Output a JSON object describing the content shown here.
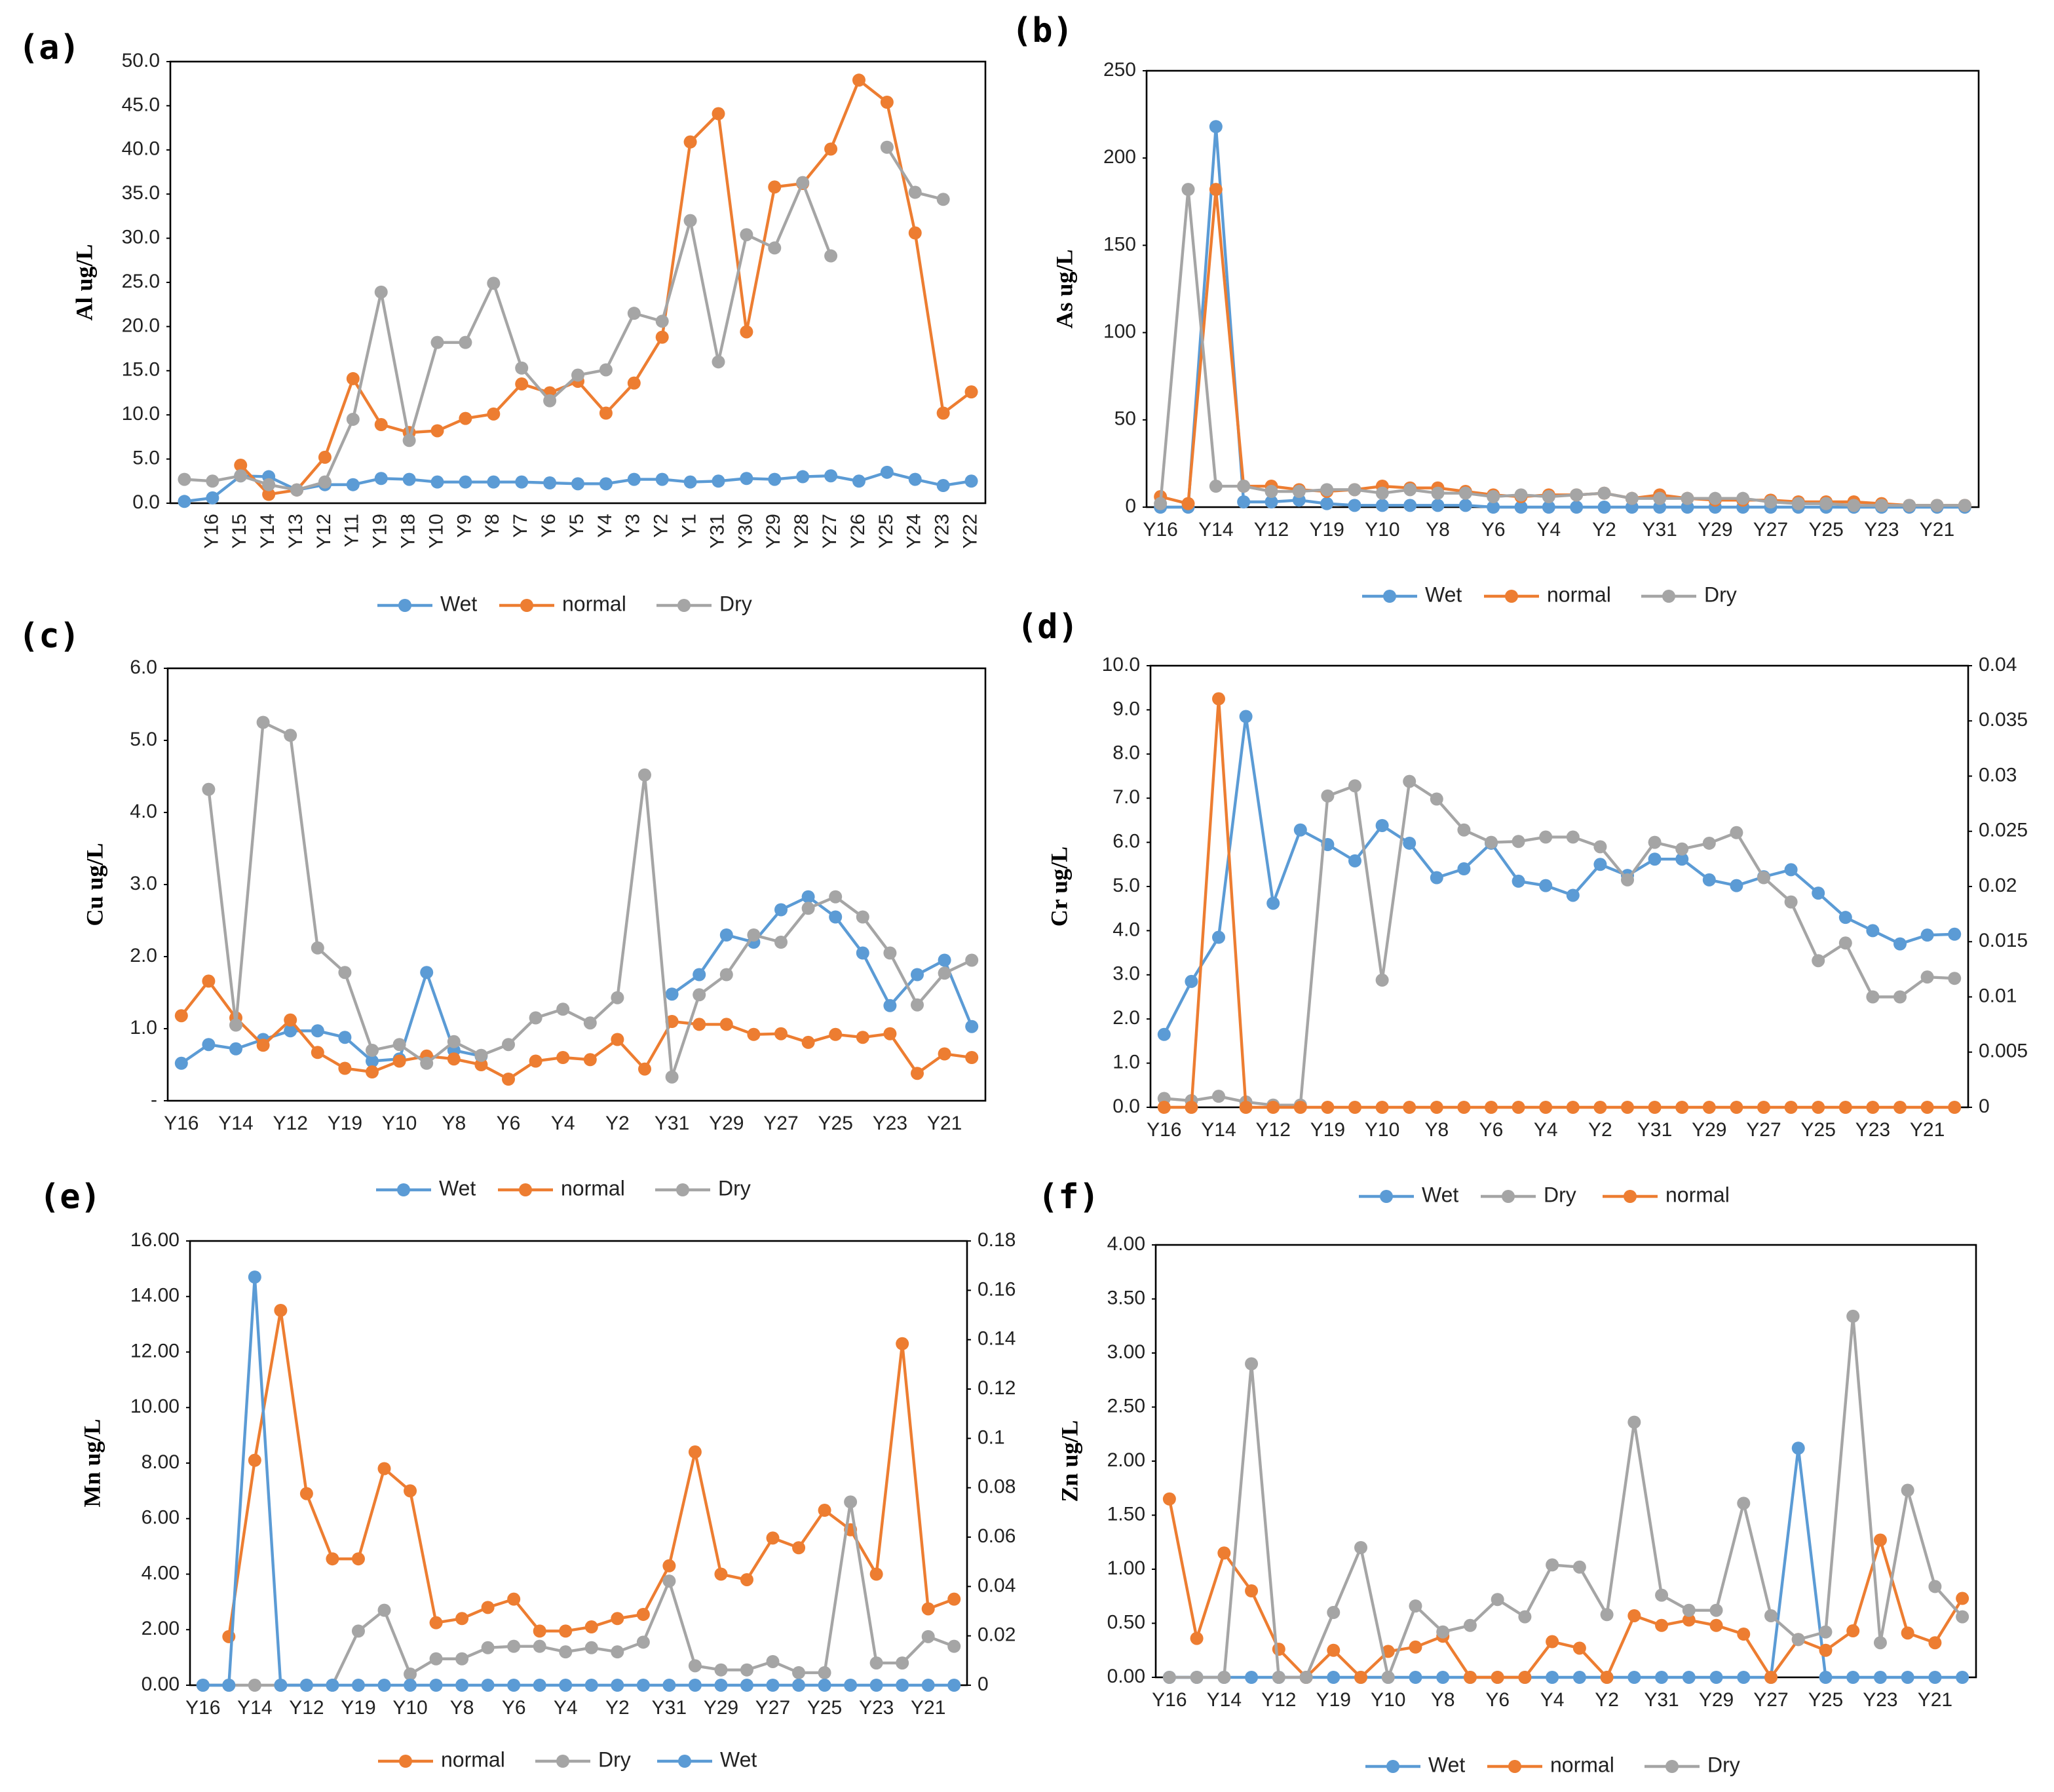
{
  "chart_data": [
    {
      "type": "line",
      "panel_label": "(a)",
      "ylabel": "Al ug/L",
      "categories": [
        null,
        "Y16",
        "Y15",
        "Y14",
        "Y13",
        "Y12",
        "Y11",
        "Y19",
        "Y18",
        "Y10",
        "Y9",
        "Y8",
        "Y7",
        "Y6",
        "Y5",
        "Y4",
        "Y3",
        "Y2",
        "Y1",
        "Y31",
        "Y30",
        "Y29",
        "Y28",
        "Y27",
        "Y26",
        "Y25",
        "Y24",
        "Y23",
        "Y22"
      ],
      "series": [
        {
          "name": "Wet",
          "color": "#5b9bd5",
          "values": [
            0.2,
            0.6,
            3.1,
            3.0,
            1.5,
            2.1,
            2.1,
            2.8,
            2.7,
            2.4,
            2.4,
            2.4,
            2.4,
            2.3,
            2.2,
            2.2,
            2.7,
            2.7,
            2.4,
            2.5,
            2.8,
            2.7,
            3.0,
            3.1,
            2.5,
            3.5,
            2.7,
            2.0,
            2.5
          ]
        },
        {
          "name": "normal",
          "color": "#ed7d31",
          "values": [
            null,
            null,
            4.3,
            1.0,
            1.5,
            5.2,
            14.1,
            8.9,
            8.0,
            8.2,
            9.6,
            10.1,
            13.5,
            12.5,
            13.8,
            10.2,
            13.6,
            18.8,
            40.9,
            44.1,
            19.4,
            35.8,
            36.2,
            40.1,
            47.9,
            45.4,
            30.6,
            10.2,
            12.6
          ]
        },
        {
          "name": "Dry",
          "color": "#a5a5a5",
          "values": [
            2.7,
            2.5,
            3.1,
            2.1,
            1.5,
            2.4,
            9.5,
            23.9,
            7.1,
            18.2,
            18.2,
            24.9,
            15.3,
            11.6,
            14.5,
            15.1,
            21.5,
            20.6,
            32.0,
            16.0,
            30.4,
            28.9,
            36.3,
            28.0,
            null,
            40.3,
            35.2,
            34.4,
            null
          ]
        }
      ],
      "ylim": [
        0,
        50
      ],
      "yticks": [
        {
          "value": 0,
          "label": "0.0"
        },
        {
          "value": 5,
          "label": "5.0"
        },
        {
          "value": 10,
          "label": "10.0"
        },
        {
          "value": 15,
          "label": "15.0"
        },
        {
          "value": 20,
          "label": "20.0"
        },
        {
          "value": 25,
          "label": "25.0"
        },
        {
          "value": 30,
          "label": "30.0"
        },
        {
          "value": 35,
          "label": "35.0"
        },
        {
          "value": 40,
          "label": "40.0"
        },
        {
          "value": 45,
          "label": "45.0"
        },
        {
          "value": 50,
          "label": "50.0"
        }
      ]
    },
    {
      "type": "line",
      "panel_label": "(b)",
      "ylabel": "As ug/L",
      "categories": [
        "Y16",
        null,
        "Y14",
        null,
        "Y12",
        null,
        "Y19",
        null,
        "Y10",
        null,
        "Y8",
        null,
        "Y6",
        null,
        "Y4",
        null,
        "Y2",
        null,
        "Y31",
        null,
        "Y29",
        null,
        "Y27",
        null,
        "Y25",
        null,
        "Y23",
        null,
        "Y21",
        null
      ],
      "series": [
        {
          "name": "Wet",
          "color": "#5b9bd5",
          "values": [
            0,
            0,
            218,
            3,
            3,
            4,
            2,
            1,
            1,
            1,
            1,
            1,
            0,
            0,
            0,
            0,
            0,
            0,
            0,
            0,
            0,
            0,
            0,
            0,
            0,
            0,
            0,
            0,
            0,
            0
          ]
        },
        {
          "name": "normal",
          "color": "#ed7d31",
          "values": [
            6,
            2,
            182,
            12,
            12,
            10,
            9,
            10,
            12,
            11,
            11,
            9,
            7,
            6,
            7,
            7,
            8,
            5,
            7,
            5,
            4,
            4,
            4,
            3,
            3,
            3,
            2,
            1,
            1,
            1
          ]
        },
        {
          "name": "Dry",
          "color": "#a5a5a5",
          "values": [
            2,
            182,
            12,
            12,
            9,
            9,
            10,
            10,
            8,
            10,
            8,
            8,
            6,
            7,
            6,
            7,
            8,
            5,
            5,
            5,
            5,
            5,
            3,
            2,
            2,
            1,
            1,
            1,
            1,
            1
          ]
        }
      ],
      "ylim": [
        0,
        250
      ],
      "yticks": [
        0,
        50,
        100,
        150,
        200,
        250
      ]
    },
    {
      "type": "line",
      "panel_label": "(c)",
      "ylabel": "Cu ug/L",
      "categories": [
        "Y16",
        null,
        "Y14",
        null,
        "Y12",
        null,
        "Y19",
        null,
        "Y10",
        null,
        "Y8",
        null,
        "Y6",
        null,
        "Y4",
        null,
        "Y2",
        null,
        "Y31",
        null,
        "Y29",
        null,
        "Y27",
        null,
        "Y25",
        null,
        "Y23",
        null,
        "Y21",
        null
      ],
      "series": [
        {
          "name": "Wet",
          "color": "#5b9bd5",
          "values": [
            0.52,
            0.78,
            0.72,
            0.85,
            0.97,
            0.97,
            0.88,
            0.55,
            0.58,
            1.78,
            0.7,
            0.62,
            null,
            null,
            null,
            null,
            null,
            null,
            1.48,
            1.75,
            2.3,
            2.2,
            2.65,
            2.83,
            2.55,
            2.05,
            1.32,
            1.75,
            1.95,
            1.03
          ]
        },
        {
          "name": "normal",
          "color": "#ed7d31",
          "values": [
            1.18,
            1.66,
            1.15,
            0.77,
            1.12,
            0.67,
            0.45,
            0.4,
            0.55,
            0.62,
            0.58,
            0.5,
            0.3,
            0.55,
            0.6,
            0.57,
            0.85,
            0.44,
            1.1,
            1.06,
            1.06,
            0.92,
            0.93,
            0.81,
            0.92,
            0.88,
            0.93,
            0.38,
            0.65,
            0.6
          ]
        },
        {
          "name": "Dry",
          "color": "#a5a5a5",
          "values": [
            null,
            4.32,
            1.05,
            5.25,
            5.07,
            2.12,
            1.78,
            0.7,
            0.78,
            0.52,
            0.82,
            0.63,
            0.78,
            1.15,
            1.27,
            1.08,
            1.43,
            4.52,
            0.33,
            1.47,
            1.75,
            2.3,
            2.2,
            2.67,
            2.83,
            2.55,
            2.05,
            1.33,
            1.77,
            1.95
          ]
        }
      ],
      "ylim": [
        0,
        6
      ],
      "yticks": [
        {
          "value": 0,
          "label": "-"
        },
        {
          "value": 1,
          "label": "1.0"
        },
        {
          "value": 2,
          "label": "2.0"
        },
        {
          "value": 3,
          "label": "3.0"
        },
        {
          "value": 4,
          "label": "4.0"
        },
        {
          "value": 5,
          "label": "5.0"
        },
        {
          "value": 6,
          "label": "6.0"
        }
      ]
    },
    {
      "type": "line",
      "panel_label": "(d)",
      "ylabel": "Cr ug/L",
      "categories": [
        "Y16",
        null,
        "Y14",
        null,
        "Y12",
        null,
        "Y19",
        null,
        "Y10",
        null,
        "Y8",
        null,
        "Y6",
        null,
        "Y4",
        null,
        "Y2",
        null,
        "Y31",
        null,
        "Y29",
        null,
        "Y27",
        null,
        "Y25",
        null,
        "Y23",
        null,
        "Y21",
        null
      ],
      "series": [
        {
          "name": "Wet",
          "color": "#5b9bd5",
          "values": [
            1.65,
            2.85,
            3.85,
            8.85,
            4.62,
            6.28,
            5.95,
            5.58,
            6.38,
            5.98,
            5.2,
            5.4,
            5.98,
            5.12,
            5.02,
            4.8,
            5.5,
            5.25,
            5.62,
            5.62,
            5.15,
            5.02,
            5.22,
            5.38,
            4.85,
            4.3,
            4.0,
            3.7,
            3.9,
            3.92
          ]
        },
        {
          "name": "Dry",
          "color": "#a5a5a5",
          "values": [
            0.2,
            0.15,
            0.25,
            0.12,
            0.05,
            0.05,
            7.05,
            7.28,
            2.88,
            7.38,
            6.98,
            6.28,
            6.0,
            6.02,
            6.12,
            6.12,
            5.9,
            5.15,
            6.0,
            5.85,
            5.98,
            6.22,
            5.2,
            4.65,
            3.32,
            3.72,
            2.5,
            2.5,
            2.95,
            2.92
          ]
        },
        {
          "name": "normal",
          "color": "#ed7d31",
          "values": [
            0,
            0,
            9.25,
            0,
            0,
            0,
            0,
            0,
            0,
            0,
            0,
            0,
            0,
            0,
            0,
            0,
            0,
            0,
            0,
            0,
            0,
            0,
            0,
            0,
            0,
            0,
            0,
            0,
            0,
            0
          ]
        }
      ],
      "ylim": [
        0,
        10
      ],
      "yticks": [
        {
          "value": 0,
          "label": "0.0"
        },
        {
          "value": 1,
          "label": "1.0"
        },
        {
          "value": 2,
          "label": "2.0"
        },
        {
          "value": 3,
          "label": "3.0"
        },
        {
          "value": 4,
          "label": "4.0"
        },
        {
          "value": 5,
          "label": "5.0"
        },
        {
          "value": 6,
          "label": "6.0"
        },
        {
          "value": 7,
          "label": "7.0"
        },
        {
          "value": 8,
          "label": "8.0"
        },
        {
          "value": 9,
          "label": "9.0"
        },
        {
          "value": 10,
          "label": "10.0"
        }
      ],
      "y2lim": [
        0,
        0.04
      ],
      "y2ticks": [
        0,
        0.005,
        0.01,
        0.015,
        0.02,
        0.025,
        0.03,
        0.035,
        0.04
      ]
    },
    {
      "type": "line",
      "panel_label": "(e)",
      "ylabel": "Mn ug/L",
      "categories": [
        "Y16",
        null,
        "Y14",
        null,
        "Y12",
        null,
        "Y19",
        null,
        "Y10",
        null,
        "Y8",
        null,
        "Y6",
        null,
        "Y4",
        null,
        "Y2",
        null,
        "Y31",
        null,
        "Y29",
        null,
        "Y27",
        null,
        "Y25",
        null,
        "Y23",
        null,
        "Y21",
        null
      ],
      "series": [
        {
          "name": "normal",
          "color": "#ed7d31",
          "values": [
            null,
            1.75,
            8.1,
            13.5,
            6.9,
            4.55,
            4.55,
            7.8,
            7.0,
            2.25,
            2.4,
            2.8,
            3.1,
            1.95,
            1.95,
            2.1,
            2.4,
            2.55,
            4.3,
            8.4,
            4.0,
            3.8,
            5.3,
            4.95,
            6.3,
            5.6,
            4.0,
            12.3,
            2.75,
            3.1
          ]
        },
        {
          "name": "Dry",
          "color": "#a5a5a5",
          "values": [
            0,
            0,
            0,
            0,
            0,
            0,
            1.95,
            2.7,
            0.4,
            0.95,
            0.95,
            1.35,
            1.4,
            1.4,
            1.2,
            1.35,
            1.2,
            1.55,
            3.75,
            0.7,
            0.55,
            0.55,
            0.85,
            0.45,
            0.45,
            6.6,
            0.8,
            0.8,
            1.75,
            1.4
          ]
        },
        {
          "name": "Wet",
          "color": "#5b9bd5",
          "values": [
            0,
            0,
            14.7,
            0,
            0,
            0,
            0,
            0,
            0,
            0,
            0,
            0,
            0,
            0,
            0,
            0,
            0,
            0,
            0,
            0,
            0,
            0,
            0,
            0,
            0,
            0,
            0,
            0,
            0,
            0
          ]
        }
      ],
      "ylim": [
        0,
        16
      ],
      "yticks": [
        {
          "value": 0,
          "label": "0.00"
        },
        {
          "value": 2,
          "label": "2.00"
        },
        {
          "value": 4,
          "label": "4.00"
        },
        {
          "value": 6,
          "label": "6.00"
        },
        {
          "value": 8,
          "label": "8.00"
        },
        {
          "value": 10,
          "label": "10.00"
        },
        {
          "value": 12,
          "label": "12.00"
        },
        {
          "value": 14,
          "label": "14.00"
        },
        {
          "value": 16,
          "label": "16.00"
        }
      ],
      "y2lim": [
        0,
        0.18
      ],
      "y2ticks": [
        0,
        0.02,
        0.04,
        0.06,
        0.08,
        0.1,
        0.12,
        0.14,
        0.16,
        0.18
      ]
    },
    {
      "type": "line",
      "panel_label": "(f)",
      "ylabel": "Zn ug/L",
      "categories": [
        "Y16",
        null,
        "Y14",
        null,
        "Y12",
        null,
        "Y19",
        null,
        "Y10",
        null,
        "Y8",
        null,
        "Y6",
        null,
        "Y4",
        null,
        "Y2",
        null,
        "Y31",
        null,
        "Y29",
        null,
        "Y27",
        null,
        "Y25",
        null,
        "Y23",
        null,
        "Y21",
        null
      ],
      "series": [
        {
          "name": "Wet",
          "color": "#5b9bd5",
          "values": [
            0,
            0,
            0,
            0,
            0,
            0,
            0,
            0,
            0,
            0,
            0,
            0,
            0,
            0,
            0,
            0,
            0,
            0,
            0,
            0,
            0,
            0,
            0,
            2.12,
            0,
            0,
            0,
            0,
            0,
            0
          ]
        },
        {
          "name": "normal",
          "color": "#ed7d31",
          "values": [
            1.65,
            0.36,
            1.15,
            0.8,
            0.26,
            0,
            0.25,
            0,
            0.24,
            0.28,
            0.38,
            0,
            0,
            0,
            0.33,
            0.27,
            0,
            0.57,
            0.48,
            0.53,
            0.48,
            0.4,
            0,
            0.35,
            0.25,
            0.43,
            1.27,
            0.41,
            0.32,
            0.73
          ]
        },
        {
          "name": "Dry",
          "color": "#a5a5a5",
          "values": [
            0,
            0,
            0,
            2.9,
            0,
            0,
            0.6,
            1.2,
            0,
            0.66,
            0.42,
            0.48,
            0.72,
            0.56,
            1.04,
            1.02,
            0.58,
            2.36,
            0.76,
            0.62,
            0.62,
            1.61,
            0.57,
            0.35,
            0.42,
            3.34,
            0.32,
            1.73,
            0.84,
            0.56
          ]
        }
      ],
      "ylim": [
        0,
        4
      ],
      "yticks": [
        {
          "value": 0,
          "label": "0.00"
        },
        {
          "value": 0.5,
          "label": "0.50"
        },
        {
          "value": 1,
          "label": "1.00"
        },
        {
          "value": 1.5,
          "label": "1.50"
        },
        {
          "value": 2,
          "label": "2.00"
        },
        {
          "value": 2.5,
          "label": "2.50"
        },
        {
          "value": 3,
          "label": "3.00"
        },
        {
          "value": 3.5,
          "label": "3.50"
        },
        {
          "value": 4,
          "label": "4.00"
        }
      ]
    }
  ]
}
